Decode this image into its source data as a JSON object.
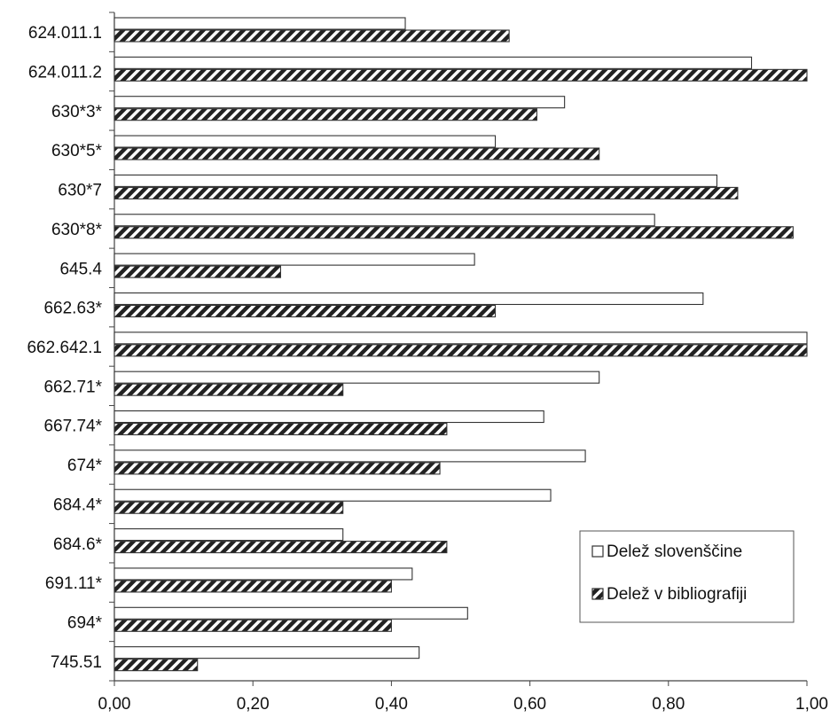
{
  "chart_data": {
    "type": "bar",
    "orientation": "horizontal",
    "categories": [
      "624.011.1",
      "624.011.2",
      "630*3*",
      "630*5*",
      "630*7",
      "630*8*",
      "645.4",
      "662.63*",
      "662.642.1",
      "662.71*",
      "667.74*",
      "674*",
      "684.4*",
      "684.6*",
      "691.11*",
      "694*",
      "745.51"
    ],
    "series": [
      {
        "name": "Delež slovenščine",
        "fill": "white",
        "values": [
          0.42,
          0.92,
          0.65,
          0.55,
          0.87,
          0.78,
          0.52,
          0.85,
          1.0,
          0.7,
          0.62,
          0.68,
          0.63,
          0.33,
          0.43,
          0.51,
          0.44
        ]
      },
      {
        "name": "Delež v bibliografiji",
        "fill": "hatched",
        "values": [
          0.57,
          1.0,
          0.61,
          0.7,
          0.9,
          0.98,
          0.24,
          0.55,
          1.0,
          0.33,
          0.48,
          0.47,
          0.33,
          0.48,
          0.4,
          0.4,
          0.12
        ]
      }
    ],
    "xlim": [
      0,
      1
    ],
    "xticks": [
      "0,00",
      "0,20",
      "0,40",
      "0,60",
      "0,80",
      "1,00"
    ],
    "title": "",
    "xlabel": "",
    "ylabel": "",
    "grid": false,
    "legend_position": "bottom-right",
    "colors": {
      "stroke": "#333333",
      "background": "#ffffff"
    }
  }
}
